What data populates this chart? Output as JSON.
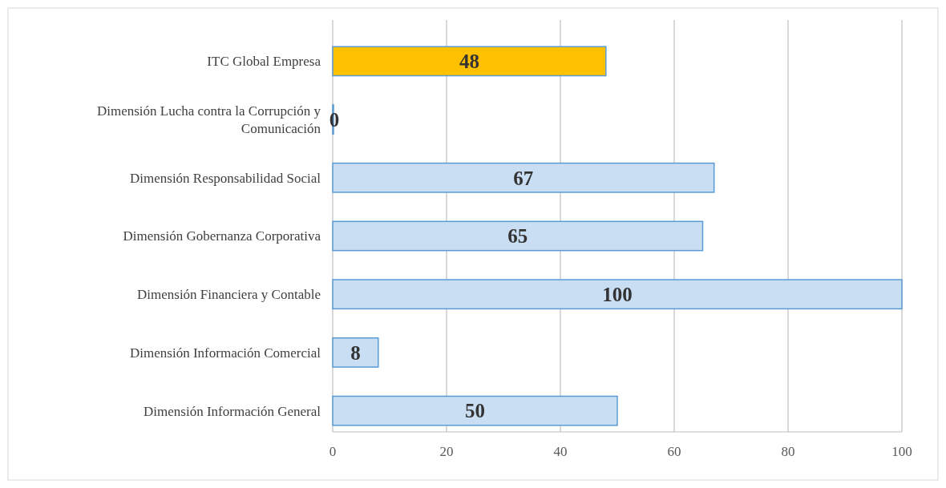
{
  "chart_data": {
    "type": "bar",
    "orientation": "horizontal",
    "categories": [
      "ITC Global Empresa",
      "Dimensión Lucha contra la Corrupción y Comunicación",
      "Dimensión Responsabilidad Social",
      "Dimensión Gobernanza Corporativa",
      "Dimensión Financiera y Contable",
      "Dimensión Información Comercial",
      "Dimensión Información General"
    ],
    "values": [
      48,
      0,
      67,
      65,
      100,
      8,
      50
    ],
    "colors": [
      "#ffc000",
      "#c9def2",
      "#c9def2",
      "#c9def2",
      "#c9def2",
      "#c9def2",
      "#c9def2"
    ],
    "xlim": [
      0,
      100
    ],
    "xticks": [
      0,
      20,
      40,
      60,
      80,
      100
    ],
    "grid": "x",
    "data_labels": true
  }
}
